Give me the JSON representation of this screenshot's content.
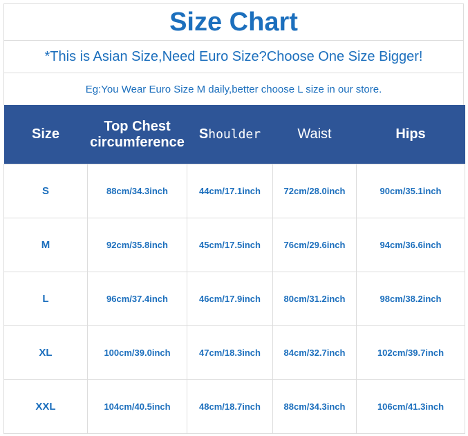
{
  "title": "Size Chart",
  "subtitle": "*This is Asian Size,Need Euro Size?Choose One Size Bigger!",
  "note": "Eg:You Wear Euro Size M daily,better choose L size in our store.",
  "headers": {
    "size": "Size",
    "chest_line1": "Top Chest",
    "chest_line2": "circumference",
    "shoulder_first": "S",
    "shoulder_rest": "houlder",
    "waist": "Waist",
    "hips": "Hips"
  },
  "rows": [
    [
      "S",
      "88cm/34.3inch",
      "44cm/17.1inch",
      "72cm/28.0inch",
      "90cm/35.1inch"
    ],
    [
      "M",
      "92cm/35.8inch",
      "45cm/17.5inch",
      "76cm/29.6inch",
      "94cm/36.6inch"
    ],
    [
      "L",
      "96cm/37.4inch",
      "46cm/17.9inch",
      "80cm/31.2inch",
      "98cm/38.2inch"
    ],
    [
      "XL",
      "100cm/39.0inch",
      "47cm/18.3inch",
      "84cm/32.7inch",
      "102cm/39.7inch"
    ],
    [
      "XXL",
      "104cm/40.5inch",
      "48cm/18.7inch",
      "88cm/34.3inch",
      "106cm/41.3inch"
    ]
  ],
  "colors": {
    "text": "#1c6fbd",
    "header_bg": "#2e5597"
  }
}
